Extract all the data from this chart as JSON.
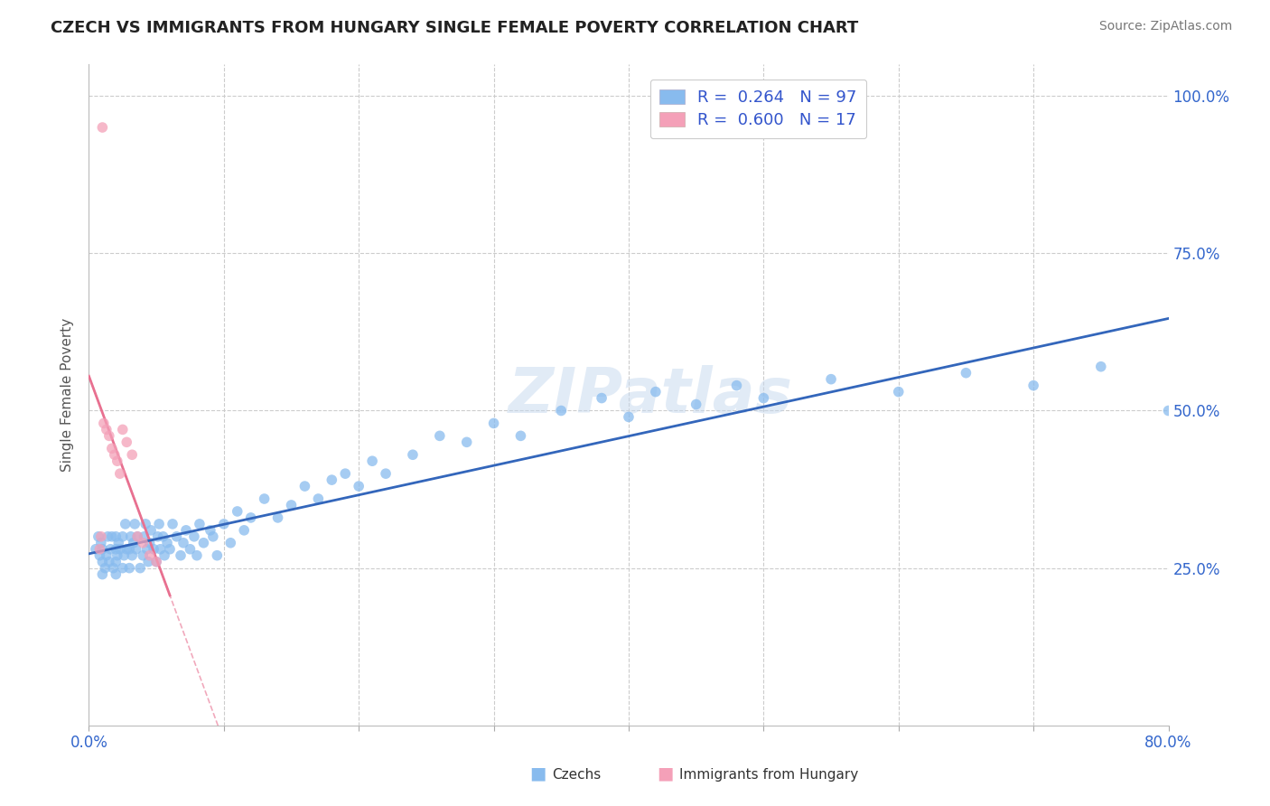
{
  "title": "CZECH VS IMMIGRANTS FROM HUNGARY SINGLE FEMALE POVERTY CORRELATION CHART",
  "source": "Source: ZipAtlas.com",
  "ylabel": "Single Female Poverty",
  "xlim": [
    0.0,
    0.8
  ],
  "ylim": [
    0.0,
    1.05
  ],
  "yticks": [
    0.25,
    0.5,
    0.75,
    1.0
  ],
  "ytick_labels": [
    "25.0%",
    "50.0%",
    "75.0%",
    "100.0%"
  ],
  "xtick_show": [
    0.0,
    0.8
  ],
  "xtick_labels_show": [
    "0.0%",
    "80.0%"
  ],
  "czech_color": "#88bbee",
  "hungary_color": "#f4a0b8",
  "czech_line_color": "#3366bb",
  "hungary_line_color": "#e87090",
  "r_czech": 0.264,
  "n_czech": 97,
  "r_hungary": 0.6,
  "n_hungary": 17,
  "watermark": "ZIPatlas",
  "legend_r_color": "#3355cc",
  "title_color": "#222222",
  "axis_label_color": "#3366cc",
  "czech_x": [
    0.005,
    0.007,
    0.008,
    0.009,
    0.01,
    0.01,
    0.01,
    0.012,
    0.013,
    0.014,
    0.015,
    0.016,
    0.017,
    0.018,
    0.02,
    0.02,
    0.02,
    0.02,
    0.021,
    0.022,
    0.023,
    0.025,
    0.025,
    0.026,
    0.027,
    0.028,
    0.03,
    0.03,
    0.031,
    0.032,
    0.033,
    0.034,
    0.035,
    0.036,
    0.038,
    0.04,
    0.041,
    0.042,
    0.043,
    0.044,
    0.045,
    0.046,
    0.048,
    0.05,
    0.051,
    0.052,
    0.053,
    0.055,
    0.056,
    0.058,
    0.06,
    0.062,
    0.065,
    0.068,
    0.07,
    0.072,
    0.075,
    0.078,
    0.08,
    0.082,
    0.085,
    0.09,
    0.092,
    0.095,
    0.1,
    0.105,
    0.11,
    0.115,
    0.12,
    0.13,
    0.14,
    0.15,
    0.16,
    0.17,
    0.18,
    0.19,
    0.2,
    0.21,
    0.22,
    0.24,
    0.26,
    0.28,
    0.3,
    0.32,
    0.35,
    0.38,
    0.4,
    0.42,
    0.45,
    0.48,
    0.5,
    0.55,
    0.6,
    0.65,
    0.7,
    0.75,
    0.8
  ],
  "czech_y": [
    0.28,
    0.3,
    0.27,
    0.29,
    0.24,
    0.26,
    0.28,
    0.25,
    0.27,
    0.3,
    0.26,
    0.28,
    0.3,
    0.25,
    0.24,
    0.26,
    0.28,
    0.3,
    0.27,
    0.29,
    0.28,
    0.25,
    0.3,
    0.27,
    0.32,
    0.28,
    0.25,
    0.28,
    0.3,
    0.27,
    0.29,
    0.32,
    0.28,
    0.3,
    0.25,
    0.27,
    0.3,
    0.32,
    0.28,
    0.26,
    0.29,
    0.31,
    0.28,
    0.26,
    0.3,
    0.32,
    0.28,
    0.3,
    0.27,
    0.29,
    0.28,
    0.32,
    0.3,
    0.27,
    0.29,
    0.31,
    0.28,
    0.3,
    0.27,
    0.32,
    0.29,
    0.31,
    0.3,
    0.27,
    0.32,
    0.29,
    0.34,
    0.31,
    0.33,
    0.36,
    0.33,
    0.35,
    0.38,
    0.36,
    0.39,
    0.4,
    0.38,
    0.42,
    0.4,
    0.43,
    0.46,
    0.45,
    0.48,
    0.46,
    0.5,
    0.52,
    0.49,
    0.53,
    0.51,
    0.54,
    0.52,
    0.55,
    0.53,
    0.56,
    0.54,
    0.57,
    0.5
  ],
  "hungary_x": [
    0.008,
    0.009,
    0.01,
    0.011,
    0.013,
    0.015,
    0.017,
    0.019,
    0.021,
    0.023,
    0.025,
    0.028,
    0.032,
    0.036,
    0.04,
    0.045,
    0.05
  ],
  "hungary_y": [
    0.28,
    0.3,
    0.95,
    0.48,
    0.47,
    0.46,
    0.44,
    0.43,
    0.42,
    0.4,
    0.47,
    0.45,
    0.43,
    0.3,
    0.29,
    0.27,
    0.26
  ]
}
